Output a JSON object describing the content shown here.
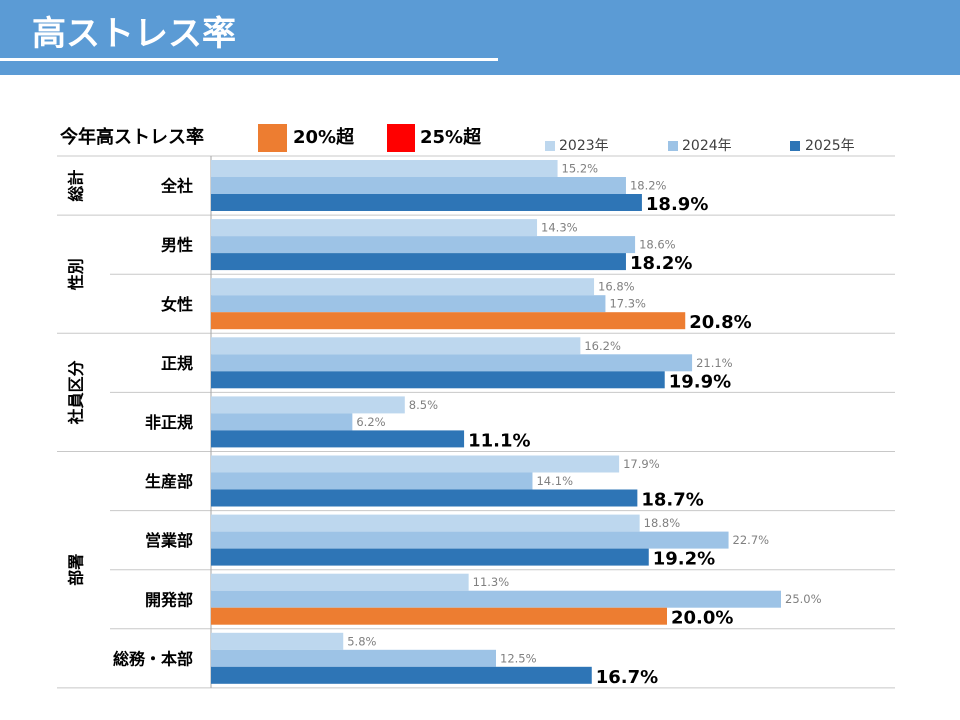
{
  "header": {
    "title": "高ストレス率"
  },
  "highlight_legend": {
    "title": "今年高ストレス率",
    "items": [
      {
        "label": "20%超",
        "color": "#ED7D31"
      },
      {
        "label": "25%超",
        "color": "#FF0000"
      }
    ]
  },
  "chart_data": {
    "type": "bar",
    "orientation": "horizontal",
    "value_suffix": "%",
    "legend_position": "top-right",
    "grid": false,
    "categories": [
      "全社",
      "男性",
      "女性",
      "正規",
      "非正規",
      "生産部",
      "営業部",
      "開発部",
      "総務・本部"
    ],
    "category_groups": [
      {
        "label": "総計",
        "count": 1
      },
      {
        "label": "性別",
        "count": 2
      },
      {
        "label": "社員区分",
        "count": 2
      },
      {
        "label": "部署",
        "count": 4
      }
    ],
    "series": [
      {
        "name": "2023年",
        "color": "#BDD7EE",
        "values": [
          15.2,
          14.3,
          16.8,
          16.2,
          8.5,
          17.9,
          18.8,
          11.3,
          5.8
        ]
      },
      {
        "name": "2024年",
        "color": "#9DC3E6",
        "values": [
          18.2,
          18.6,
          17.3,
          21.1,
          6.2,
          14.1,
          22.7,
          25.0,
          12.5
        ]
      },
      {
        "name": "2025年",
        "color": "#2E75B6",
        "values": [
          18.9,
          18.2,
          20.8,
          19.9,
          11.1,
          18.7,
          19.2,
          20.0,
          16.7
        ],
        "point_colors": [
          null,
          null,
          "#ED7D31",
          null,
          null,
          null,
          null,
          "#ED7D31",
          null
        ]
      }
    ]
  }
}
